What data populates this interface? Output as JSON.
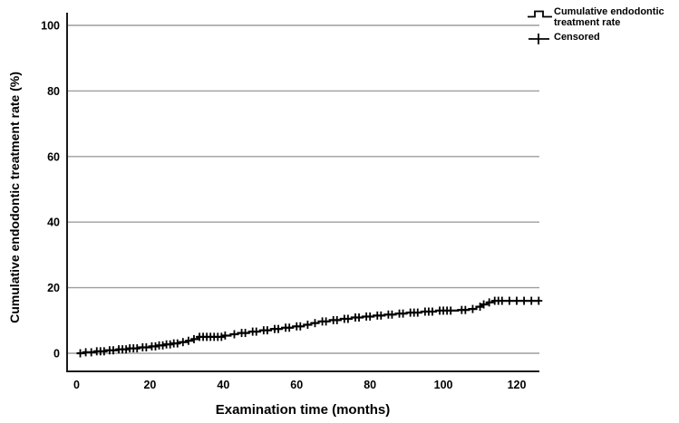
{
  "figure": {
    "background": "#ffffff"
  },
  "legend": {
    "items": [
      {
        "symbol": "step-line",
        "label": "Cumulative endodontic treatment rate"
      },
      {
        "symbol": "plus",
        "label": "Censored"
      }
    ]
  },
  "chart_data": {
    "type": "line",
    "subtype": "kaplan_meier_step",
    "title": "",
    "xlabel": "Examination time (months)",
    "ylabel": "Cumulative endodontic treatment rate (%)",
    "xlim": [
      0,
      126
    ],
    "ylim": [
      0,
      105
    ],
    "xticks": [
      0,
      20,
      40,
      60,
      80,
      100,
      120
    ],
    "yticks": [
      0,
      20,
      40,
      60,
      80,
      100
    ],
    "grid": "horizontal",
    "legend_position": "top-right",
    "colors": {
      "curve": "#000000",
      "grid": "#9e9e9e",
      "axis": "#1a1a1a",
      "text": "#000000"
    },
    "series": [
      {
        "name": "Cumulative endodontic treatment rate",
        "type": "step",
        "end_month": 126,
        "steps": [
          [
            0,
            0
          ],
          [
            2,
            0.3
          ],
          [
            5,
            0.6
          ],
          [
            8,
            0.9
          ],
          [
            11,
            1.2
          ],
          [
            14,
            1.5
          ],
          [
            17,
            1.8
          ],
          [
            20,
            2.1
          ],
          [
            22,
            2.4
          ],
          [
            24,
            2.7
          ],
          [
            26,
            3.0
          ],
          [
            28,
            3.4
          ],
          [
            30,
            3.8
          ],
          [
            31.5,
            4.3
          ],
          [
            33,
            5.0
          ],
          [
            40,
            5.4
          ],
          [
            42,
            5.8
          ],
          [
            44,
            6.2
          ],
          [
            47,
            6.6
          ],
          [
            50,
            7.0
          ],
          [
            53,
            7.4
          ],
          [
            56,
            7.8
          ],
          [
            59,
            8.2
          ],
          [
            62,
            8.7
          ],
          [
            64,
            9.2
          ],
          [
            66,
            9.7
          ],
          [
            69,
            10.1
          ],
          [
            72,
            10.5
          ],
          [
            75,
            10.9
          ],
          [
            78,
            11.2
          ],
          [
            81,
            11.5
          ],
          [
            84,
            11.8
          ],
          [
            87,
            12.1
          ],
          [
            90,
            12.4
          ],
          [
            94,
            12.7
          ],
          [
            98,
            13.0
          ],
          [
            104,
            13.2
          ],
          [
            107,
            13.5
          ],
          [
            109,
            14.2
          ],
          [
            110.5,
            14.9
          ],
          [
            112,
            15.5
          ],
          [
            113.5,
            16.0
          ]
        ]
      },
      {
        "name": "Censored",
        "type": "censor_marks",
        "months": [
          1,
          2.5,
          4,
          5.5,
          6.5,
          7.5,
          9,
          10,
          11.5,
          12.5,
          13.5,
          14.5,
          15.5,
          16.5,
          18,
          19,
          20.5,
          21.5,
          22.5,
          23.5,
          24.5,
          25.5,
          26.5,
          27.5,
          29,
          30.5,
          32,
          33.5,
          34.5,
          35.5,
          36.5,
          37.5,
          38.5,
          39.5,
          40.5,
          43,
          45,
          46,
          48,
          49,
          51,
          52,
          54,
          55,
          57,
          58,
          60,
          61,
          63,
          65,
          67,
          68,
          70,
          71,
          73,
          74,
          76,
          77,
          79,
          80,
          82,
          83,
          85,
          86,
          88,
          89,
          91,
          92,
          93,
          95,
          96,
          97,
          99,
          100,
          101,
          102,
          105,
          106,
          108,
          110,
          111,
          112.5,
          114,
          115,
          116,
          118,
          120,
          122,
          124,
          126
        ]
      }
    ]
  }
}
